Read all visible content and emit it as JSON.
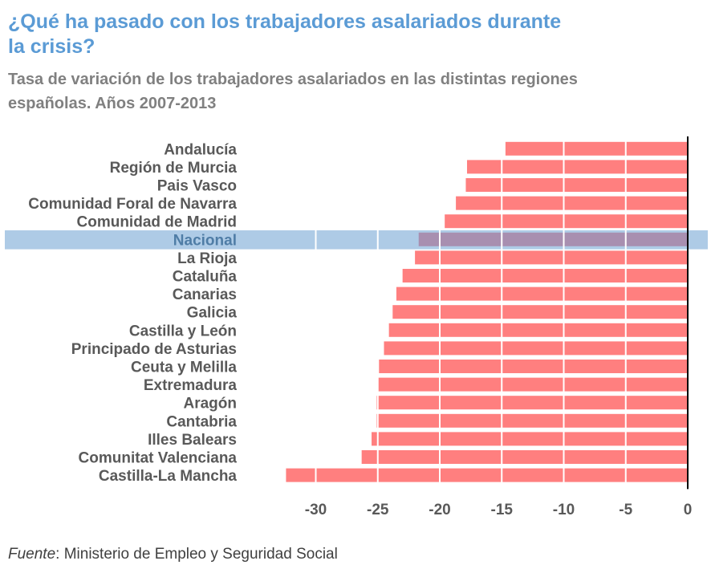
{
  "header": {
    "title": "¿Qué ha pasado con los trabajadores asalariados durante la crisis?",
    "subtitle": "Tasa de variación de los trabajadores asalariados en las distintas regiones españolas. Años 2007-2013"
  },
  "footer": {
    "source_label": "Fuente",
    "source_text": ": Ministerio de Empleo y Seguridad Social"
  },
  "colors": {
    "bar": "#ff7f7f",
    "highlight_band": "#aecbe6",
    "highlight_bar": "#a88fb0",
    "highlight_label": "#4f7da6",
    "label": "#595959",
    "title": "#5b9bd5",
    "subtitle": "#808080"
  },
  "chart_data": {
    "type": "bar",
    "orientation": "horizontal",
    "title": "¿Qué ha pasado con los trabajadores asalariados durante la crisis?",
    "subtitle": "Tasa de variación de los trabajadores asalariados en las distintas regiones españolas. Años 2007-2013",
    "xlabel": "",
    "ylabel": "",
    "xlim": [
      -33,
      0
    ],
    "xticks": [
      -30,
      -25,
      -20,
      -15,
      -10,
      -5,
      0
    ],
    "grid": "vertical",
    "highlight": "Nacional",
    "categories": [
      "Andalucía",
      "Región de Murcia",
      "Pais Vasco",
      "Comunidad Foral de Navarra",
      "Comunidad de Madrid",
      "Nacional",
      "La Rioja",
      "Cataluña",
      "Canarias",
      "Galicia",
      "Castilla y León",
      "Principado de Asturias",
      "Ceuta y Melilla",
      "Extremadura",
      "Aragón",
      "Cantabria",
      "Illes Balears",
      "Comunitat Valenciana",
      "Castilla-La Mancha"
    ],
    "values": [
      -14.7,
      -17.8,
      -17.9,
      -18.7,
      -19.6,
      -21.7,
      -22.0,
      -23.0,
      -23.5,
      -23.8,
      -24.1,
      -24.5,
      -24.9,
      -25.0,
      -25.1,
      -25.1,
      -25.5,
      -26.3,
      -32.4
    ]
  }
}
